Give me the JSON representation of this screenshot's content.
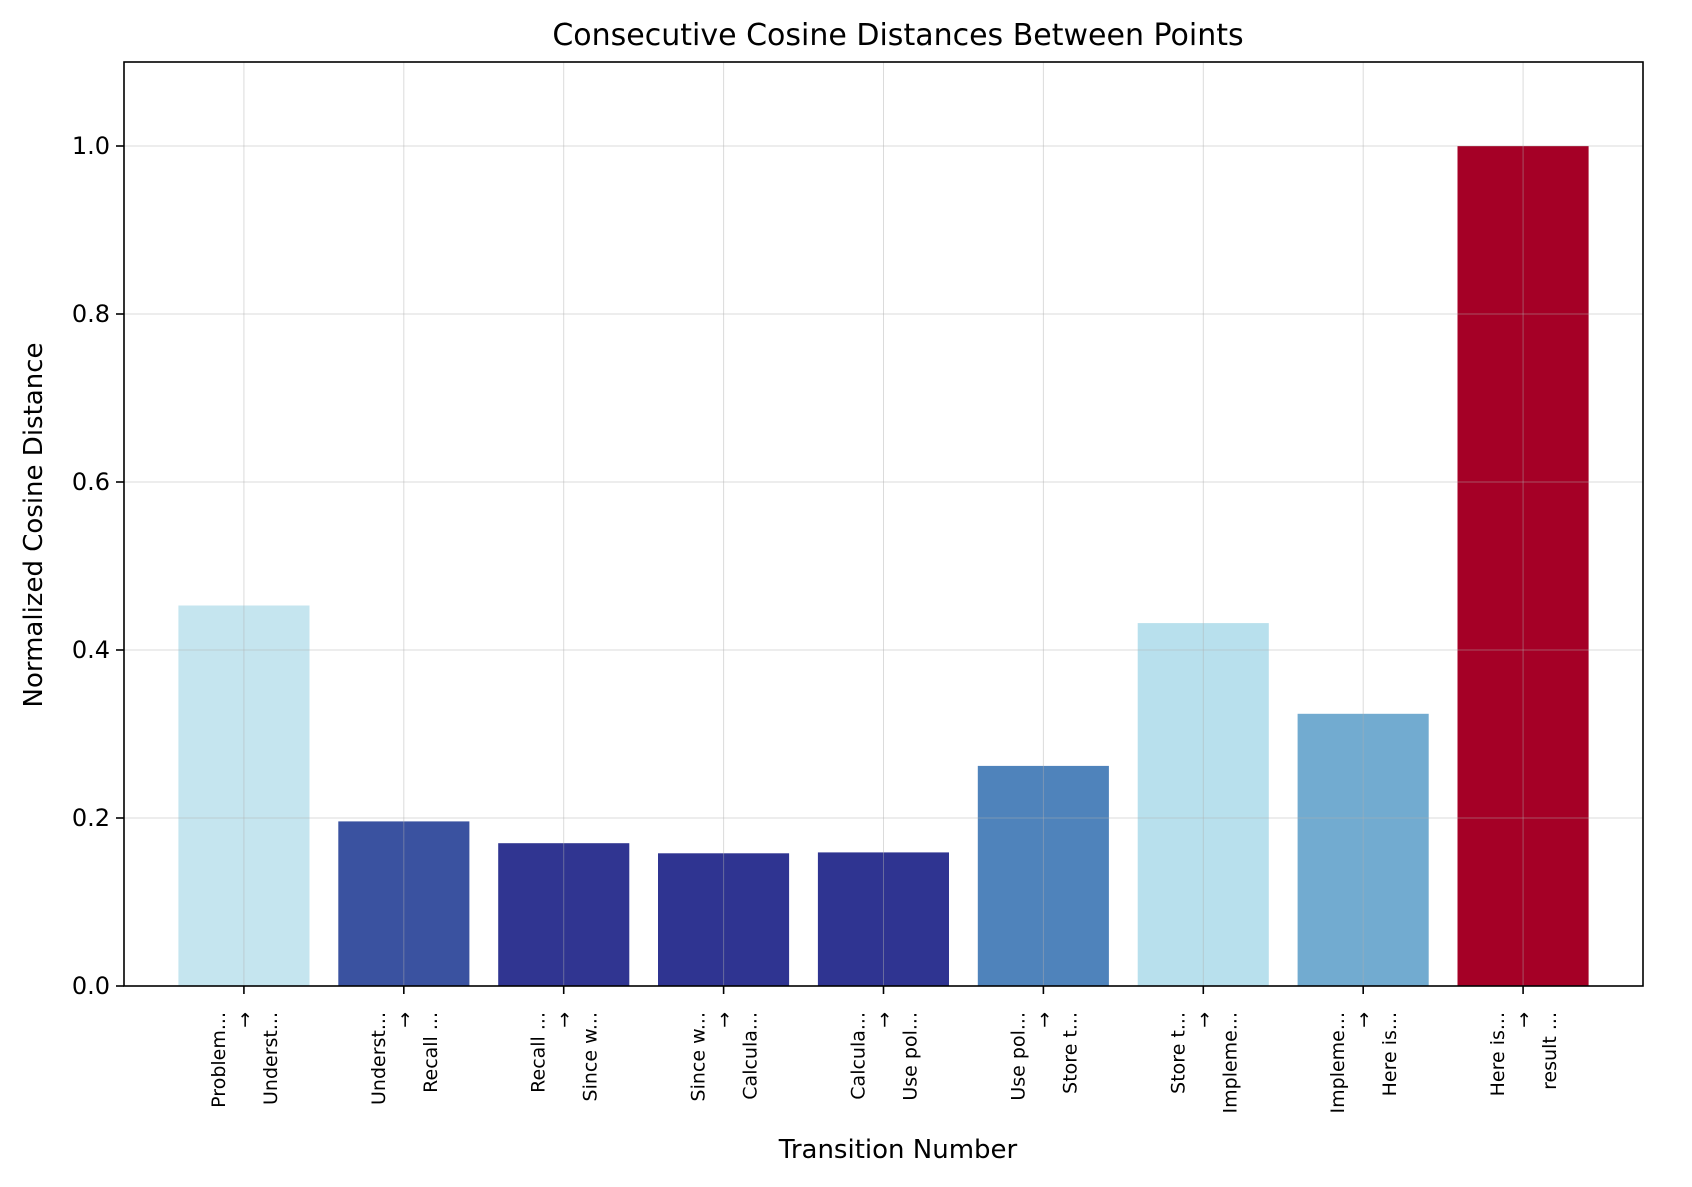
{
  "chart_data": {
    "type": "bar",
    "title": "Consecutive Cosine Distances Between Points",
    "xlabel": "Transition Number",
    "ylabel": "Normalized Cosine Distance",
    "ylim": [
      0,
      1.1
    ],
    "yticks": [
      0.0,
      0.2,
      0.4,
      0.6,
      0.8,
      1.0
    ],
    "ytick_labels": [
      "0.0",
      "0.2",
      "0.4",
      "0.6",
      "0.8",
      "1.0"
    ],
    "grid": true,
    "categories": [
      {
        "from": "Problem...",
        "to": "Underst..."
      },
      {
        "from": "Underst...",
        "to": "Recall ..."
      },
      {
        "from": "Recall ...",
        "to": "Since w..."
      },
      {
        "from": "Since w...",
        "to": "Calcula..."
      },
      {
        "from": "Calcula...",
        "to": "Use pol..."
      },
      {
        "from": "Use pol...",
        "to": "Store t..."
      },
      {
        "from": "Store t...",
        "to": "Impleme..."
      },
      {
        "from": "Impleme...",
        "to": "Here is..."
      },
      {
        "from": "Here is...",
        "to": "result ..."
      }
    ],
    "arrow": "→",
    "values": [
      0.453,
      0.196,
      0.17,
      0.158,
      0.159,
      0.262,
      0.432,
      0.324,
      1.0
    ],
    "colors": [
      "#c5e5ef",
      "#3a52a0",
      "#303591",
      "#2f3491",
      "#2f3491",
      "#4f83bb",
      "#b8e0ed",
      "#72abd0",
      "#a50026"
    ]
  }
}
